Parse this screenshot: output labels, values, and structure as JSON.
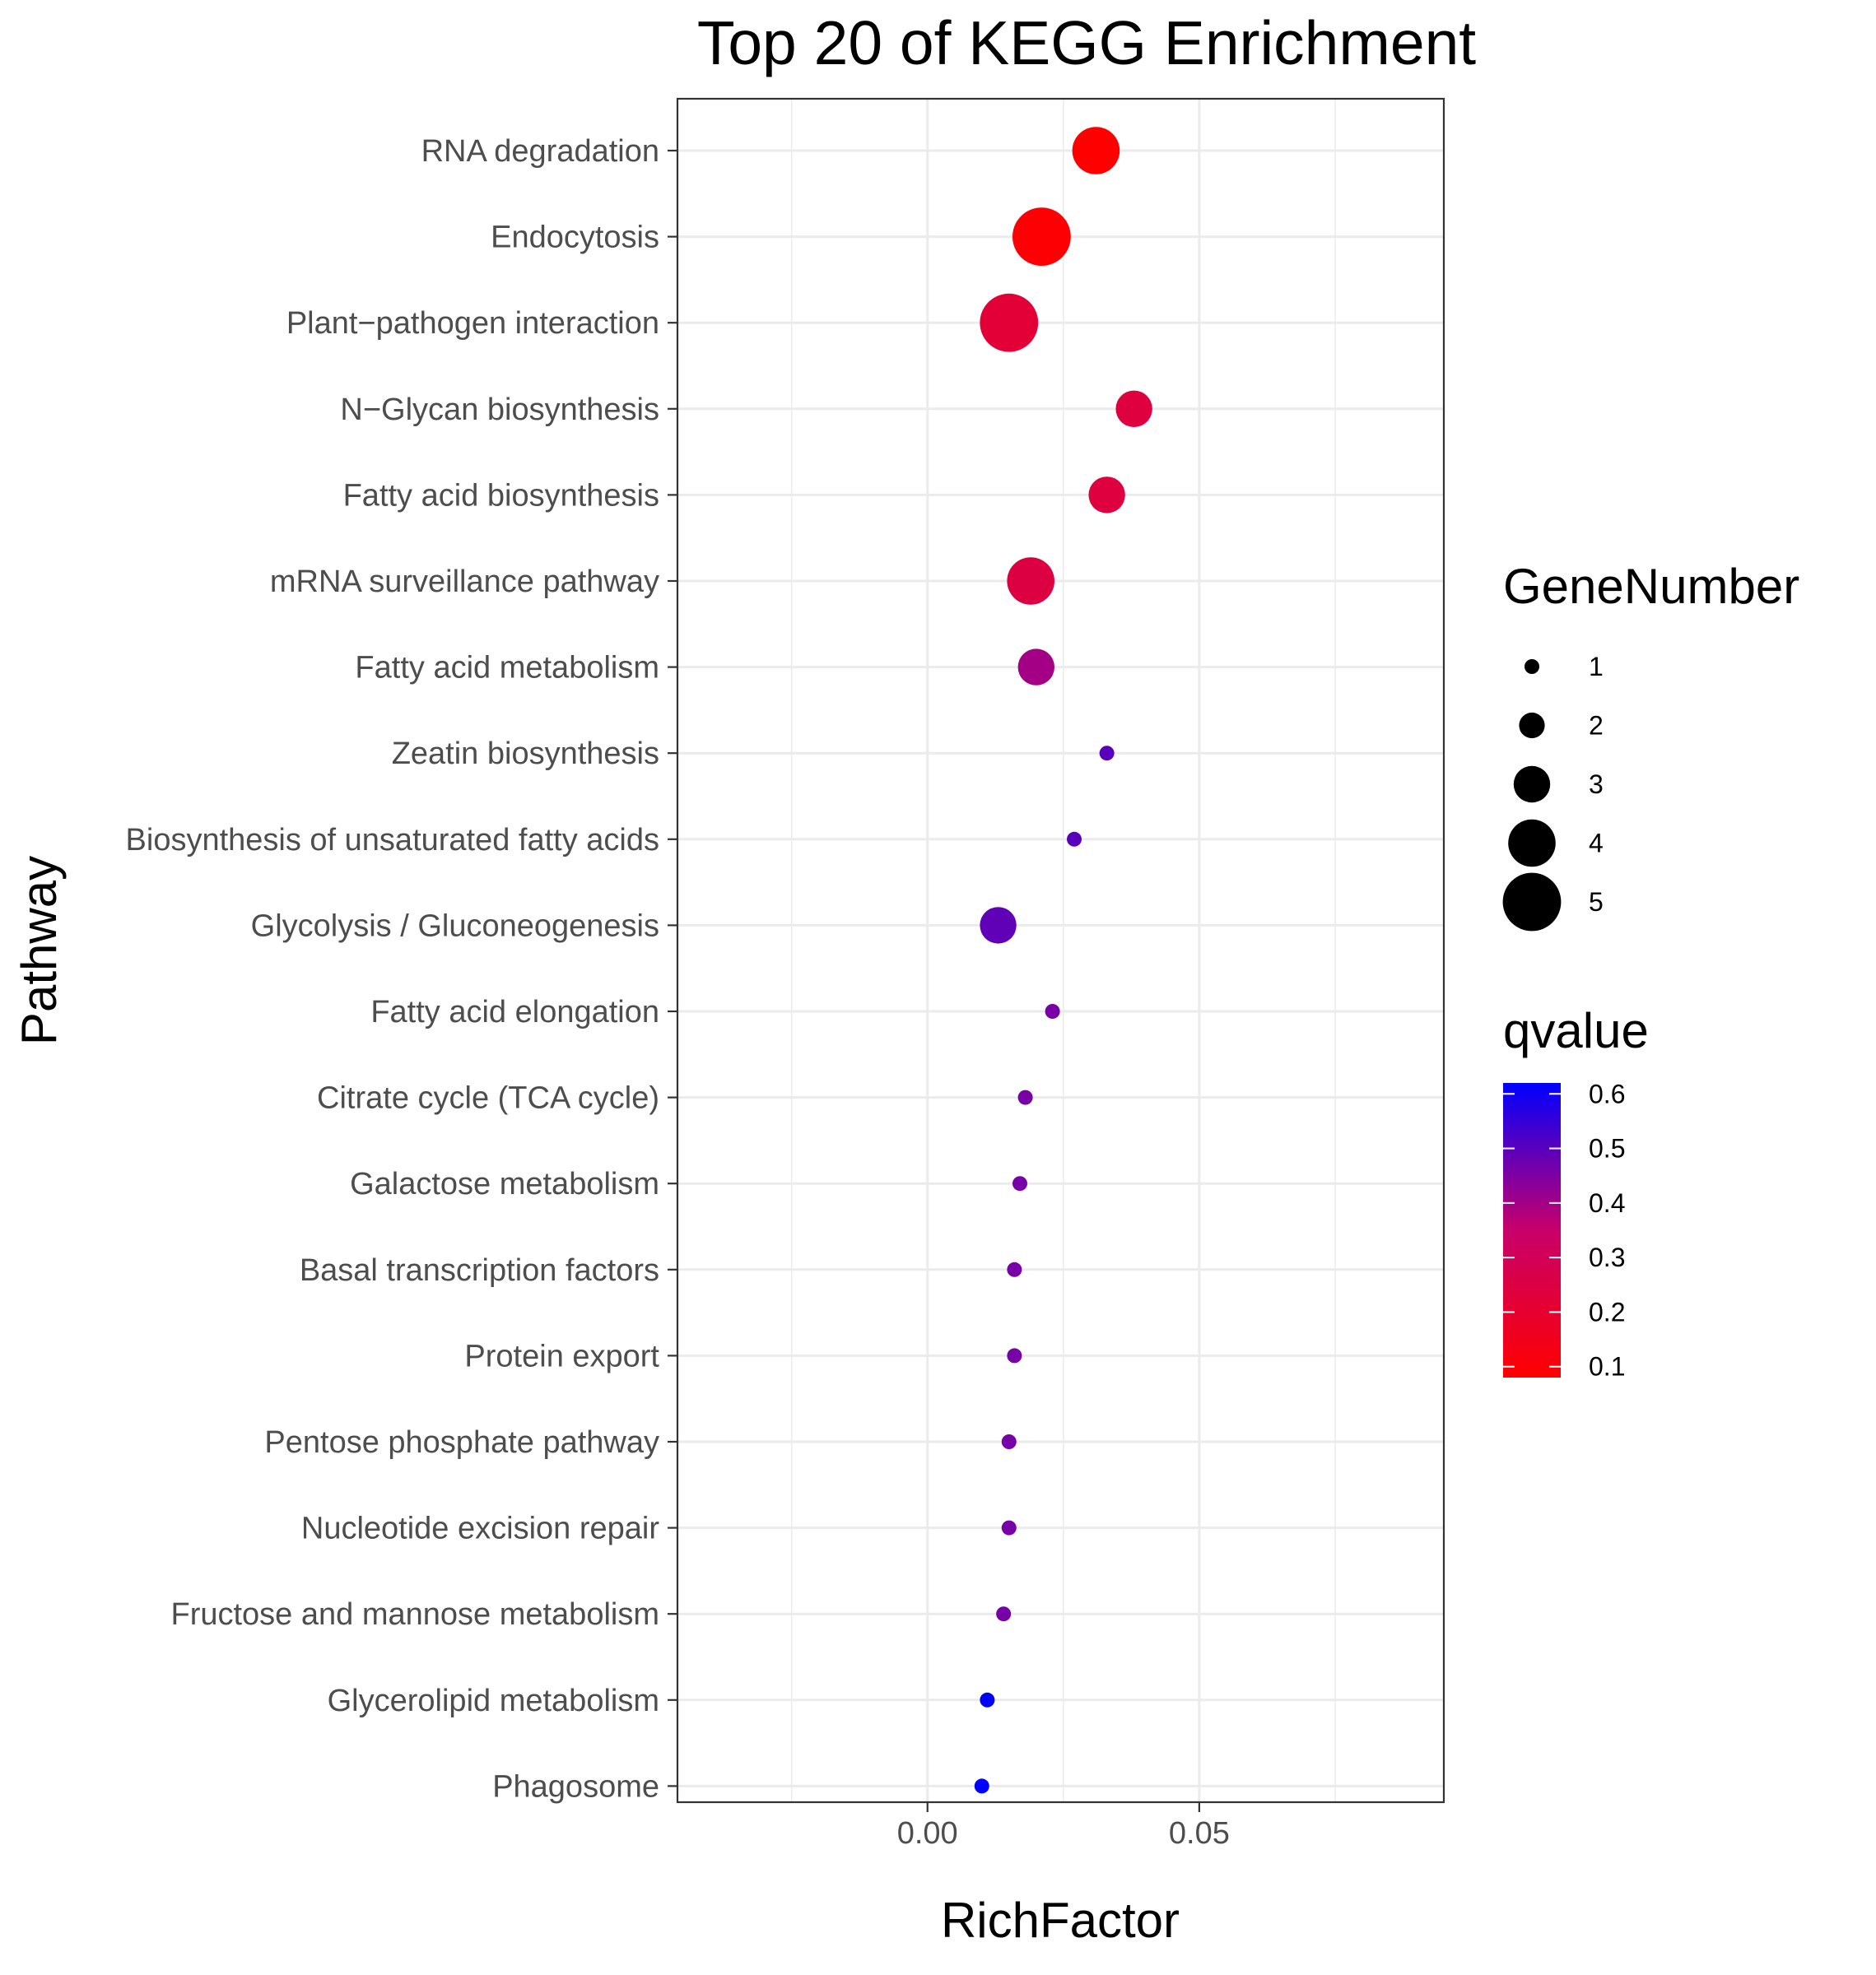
{
  "chart_data": {
    "type": "scatter",
    "title": "Top 20 of KEGG Enrichment",
    "xlabel": "RichFactor",
    "ylabel": "Pathway",
    "xlim": [
      -0.046,
      0.095
    ],
    "x_ticks": [
      0.0,
      0.05
    ],
    "x_tick_labels": [
      "0.00",
      "0.05"
    ],
    "x_minor_ticks": [
      -0.025,
      0.025,
      0.075
    ],
    "grid": true,
    "points": [
      {
        "pathway": "RNA degradation",
        "richfactor": 0.031,
        "gene_number": 4,
        "qvalue": 0.08
      },
      {
        "pathway": "Endocytosis",
        "richfactor": 0.021,
        "gene_number": 5,
        "qvalue": 0.09
      },
      {
        "pathway": "Plant−pathogen interaction",
        "richfactor": 0.015,
        "gene_number": 5,
        "qvalue": 0.22
      },
      {
        "pathway": "N−Glycan biosynthesis",
        "richfactor": 0.038,
        "gene_number": 3,
        "qvalue": 0.24
      },
      {
        "pathway": "Fatty acid biosynthesis",
        "richfactor": 0.033,
        "gene_number": 3,
        "qvalue": 0.24
      },
      {
        "pathway": "mRNA surveillance pathway",
        "richfactor": 0.019,
        "gene_number": 4,
        "qvalue": 0.25
      },
      {
        "pathway": "Fatty acid metabolism",
        "richfactor": 0.02,
        "gene_number": 3,
        "qvalue": 0.4
      },
      {
        "pathway": "Zeatin biosynthesis",
        "richfactor": 0.033,
        "gene_number": 1,
        "qvalue": 0.5
      },
      {
        "pathway": "Biosynthesis of unsaturated fatty acids",
        "richfactor": 0.027,
        "gene_number": 1,
        "qvalue": 0.5
      },
      {
        "pathway": "Glycolysis / Gluconeogenesis",
        "richfactor": 0.013,
        "gene_number": 3,
        "qvalue": 0.49
      },
      {
        "pathway": "Fatty acid elongation",
        "richfactor": 0.023,
        "gene_number": 1,
        "qvalue": 0.46
      },
      {
        "pathway": "Citrate cycle (TCA cycle)",
        "richfactor": 0.018,
        "gene_number": 1,
        "qvalue": 0.46
      },
      {
        "pathway": "Galactose metabolism",
        "richfactor": 0.017,
        "gene_number": 1,
        "qvalue": 0.46
      },
      {
        "pathway": "Basal transcription factors",
        "richfactor": 0.016,
        "gene_number": 1,
        "qvalue": 0.46
      },
      {
        "pathway": "Protein export",
        "richfactor": 0.016,
        "gene_number": 1,
        "qvalue": 0.46
      },
      {
        "pathway": "Pentose phosphate pathway",
        "richfactor": 0.015,
        "gene_number": 1,
        "qvalue": 0.46
      },
      {
        "pathway": "Nucleotide excision repair",
        "richfactor": 0.015,
        "gene_number": 1,
        "qvalue": 0.46
      },
      {
        "pathway": "Fructose and mannose metabolism",
        "richfactor": 0.014,
        "gene_number": 1,
        "qvalue": 0.46
      },
      {
        "pathway": "Glycerolipid metabolism",
        "richfactor": 0.011,
        "gene_number": 1,
        "qvalue": 0.62
      },
      {
        "pathway": "Phagosome",
        "richfactor": 0.01,
        "gene_number": 1,
        "qvalue": 0.62
      }
    ],
    "legend": {
      "placement": "right",
      "size_title": "GeneNumber",
      "size_values": [
        1,
        2,
        3,
        4,
        5
      ],
      "size_labels": [
        "1",
        "2",
        "3",
        "4",
        "5"
      ],
      "color_title": "qvalue",
      "color_breaks": [
        0.1,
        0.2,
        0.3,
        0.4,
        0.5,
        0.6
      ],
      "color_labels": [
        "0.1",
        "0.2",
        "0.3",
        "0.4",
        "0.5",
        "0.6"
      ],
      "color_range": [
        0.08,
        0.62
      ],
      "color_low": "#FF0000",
      "color_high": "#0000FF"
    }
  }
}
